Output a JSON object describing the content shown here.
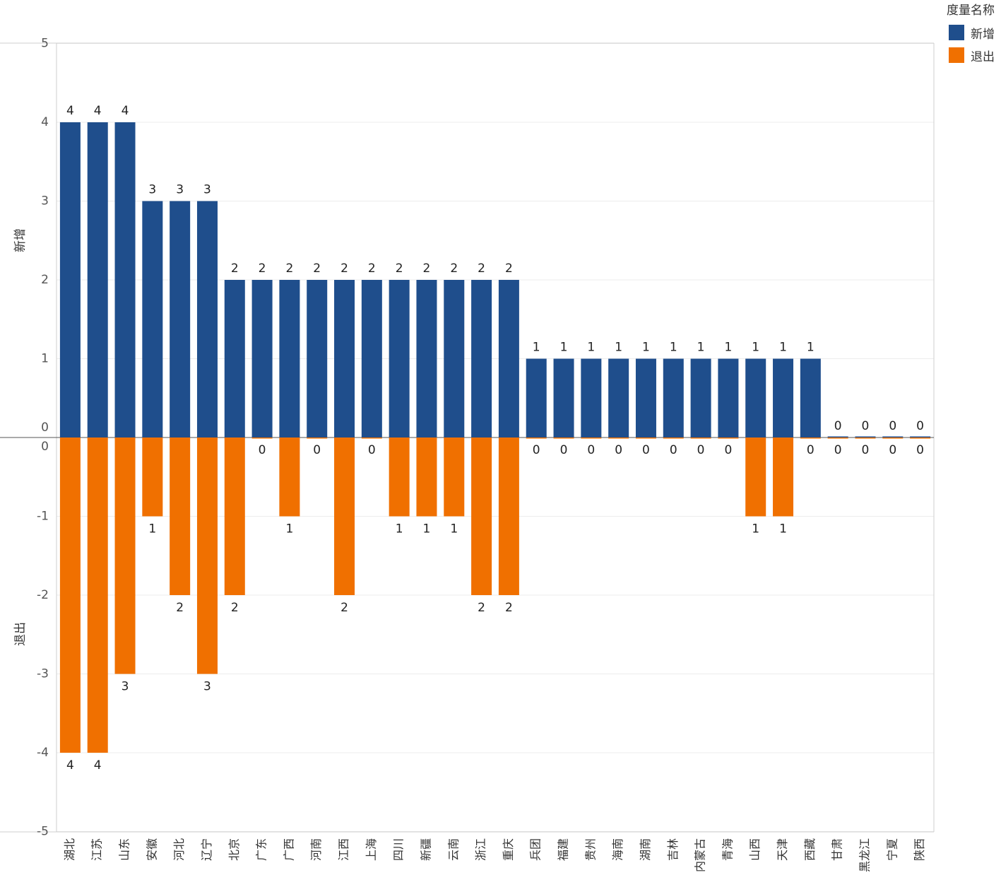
{
  "legend": {
    "title": "度量名称",
    "items": [
      {
        "label": "新增",
        "color": "#1f4e8c"
      },
      {
        "label": "退出",
        "color": "#f07000"
      }
    ]
  },
  "chart_data": {
    "type": "bar",
    "layout": "mirrored-panels",
    "categories": [
      "湖北",
      "江苏",
      "山东",
      "安徽",
      "河北",
      "辽宁",
      "北京",
      "广东",
      "广西",
      "河南",
      "江西",
      "上海",
      "四川",
      "新疆",
      "云南",
      "浙江",
      "重庆",
      "兵团",
      "福建",
      "贵州",
      "海南",
      "湖南",
      "吉林",
      "内蒙古",
      "青海",
      "山西",
      "天津",
      "西藏",
      "甘肃",
      "黑龙江",
      "宁夏",
      "陕西"
    ],
    "series": [
      {
        "name": "新增",
        "color": "#1f4e8c",
        "values": [
          4,
          4,
          4,
          3,
          3,
          3,
          2,
          2,
          2,
          2,
          2,
          2,
          2,
          2,
          2,
          2,
          2,
          1,
          1,
          1,
          1,
          1,
          1,
          1,
          1,
          1,
          1,
          1,
          0,
          0,
          0,
          0
        ]
      },
      {
        "name": "退出",
        "color": "#f07000",
        "values": [
          -4,
          -4,
          -3,
          -1,
          -2,
          -3,
          -2,
          0,
          -1,
          0,
          -2,
          0,
          -1,
          -1,
          -1,
          -2,
          -2,
          0,
          0,
          0,
          0,
          0,
          0,
          0,
          0,
          -1,
          -1,
          0,
          0,
          0,
          0,
          0
        ]
      }
    ],
    "data_labels": {
      "新增": [
        "4",
        "4",
        "4",
        "3",
        "3",
        "3",
        "2",
        "2",
        "2",
        "2",
        "2",
        "2",
        "2",
        "2",
        "2",
        "2",
        "2",
        "1",
        "1",
        "1",
        "1",
        "1",
        "1",
        "1",
        "1",
        "1",
        "1",
        "1",
        "0",
        "0",
        "0",
        "0"
      ],
      "退出": [
        "4",
        "4",
        "3",
        "1",
        "2",
        "3",
        "2",
        "0",
        "1",
        "0",
        "2",
        "0",
        "1",
        "1",
        "1",
        "2",
        "2",
        "0",
        "0",
        "0",
        "0",
        "0",
        "0",
        "0",
        "0",
        "1",
        "1",
        "0",
        "0",
        "0",
        "0",
        "0"
      ]
    },
    "panels": [
      {
        "ylabel": "新增",
        "ylim": [
          0,
          5
        ],
        "ticks": [
          "0",
          "1",
          "2",
          "3",
          "4",
          "5"
        ]
      },
      {
        "ylabel": "退出",
        "ylim": [
          -5,
          0
        ],
        "ticks": [
          "0",
          "-1",
          "-2",
          "-3",
          "-4",
          "-5"
        ]
      }
    ],
    "gridlines": true
  }
}
